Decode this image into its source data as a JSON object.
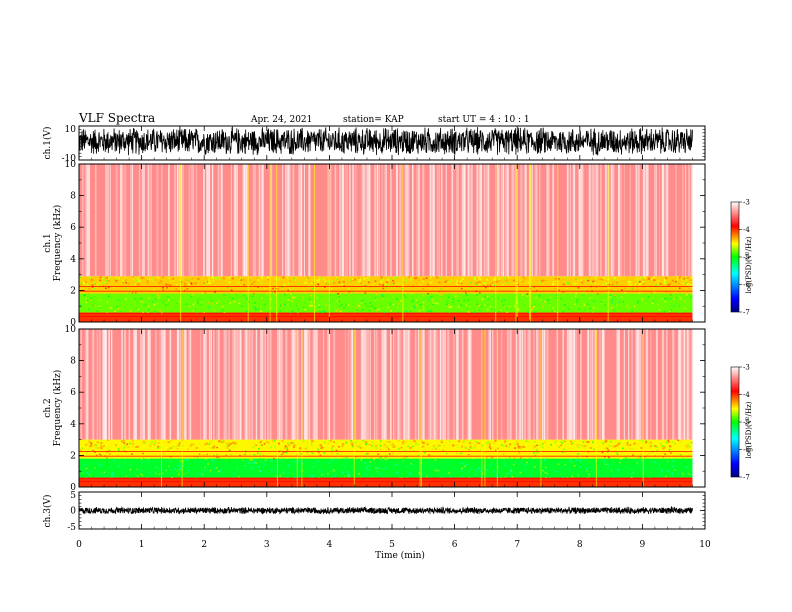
{
  "header": {
    "title": "VLF Spectra",
    "date": "Apr. 24, 2021",
    "station": "station= KAP",
    "start": "start  UT =   4 : 10 : 1"
  },
  "chart_data": [
    {
      "type": "line",
      "panel": "ch1-waveform",
      "ylabel": "ch.1(V)",
      "ylim": [
        -10,
        10
      ],
      "yticks": [
        "10",
        "-10"
      ],
      "xlim": [
        0,
        10
      ],
      "data_end_min": 9.8,
      "amplitude_range_V": [
        -8,
        10
      ]
    },
    {
      "type": "heatmap",
      "panel": "ch1-spectrogram",
      "ylabel_line1": "ch.1",
      "ylabel_line2": "Frequency (kHz)",
      "ylim": [
        0,
        10
      ],
      "yticks": [
        "0",
        "2",
        "4",
        "6",
        "8",
        "10"
      ],
      "xlim": [
        0,
        10
      ],
      "data_end_min": 9.8,
      "bands": [
        {
          "from_khz": 0,
          "to_khz": 0.6,
          "level": -4.0
        },
        {
          "from_khz": 0.6,
          "to_khz": 1.8,
          "level": -4.8
        },
        {
          "from_khz": 1.8,
          "to_khz": 2.9,
          "level": -4.4
        },
        {
          "from_khz": 2.9,
          "to_khz": 10,
          "level": -3.4
        }
      ],
      "colorbar": {
        "label": "log(PSD)(V²/Hz)",
        "range": [
          -7,
          -3
        ],
        "ticks": [
          "-3",
          "-4",
          "-5",
          "-6",
          "-7"
        ]
      }
    },
    {
      "type": "heatmap",
      "panel": "ch2-spectrogram",
      "ylabel_line1": "ch.2",
      "ylabel_line2": "Frequency (kHz)",
      "ylim": [
        0,
        10
      ],
      "yticks": [
        "0",
        "2",
        "4",
        "6",
        "8",
        "10"
      ],
      "xlim": [
        0,
        10
      ],
      "data_end_min": 9.8,
      "bands": [
        {
          "from_khz": 0,
          "to_khz": 0.6,
          "level": -4.0
        },
        {
          "from_khz": 0.6,
          "to_khz": 1.8,
          "level": -5.1
        },
        {
          "from_khz": 1.8,
          "to_khz": 3.0,
          "level": -4.5
        },
        {
          "from_khz": 3.0,
          "to_khz": 10,
          "level": -3.4
        }
      ],
      "colorbar": {
        "label": "log(PSD)(V²/Hz)",
        "range": [
          -7,
          -3
        ],
        "ticks": [
          "-3",
          "-4",
          "-5",
          "-6",
          "-7"
        ]
      }
    },
    {
      "type": "line",
      "panel": "ch3-waveform",
      "ylabel": "ch.3(V)",
      "ylim": [
        -5,
        5
      ],
      "yticks": [
        "5",
        "0",
        "-5"
      ],
      "xlim": [
        0,
        10
      ],
      "data_end_min": 9.8,
      "amplitude_range_V": [
        -1,
        1
      ]
    }
  ],
  "xaxis": {
    "label": "Time (min)",
    "ticks": [
      "0",
      "1",
      "2",
      "3",
      "4",
      "5",
      "6",
      "7",
      "8",
      "9",
      "10"
    ]
  },
  "colors": {
    "cmap": [
      "#00007f",
      "#0000ff",
      "#00ffff",
      "#00ff00",
      "#ffff00",
      "#ff0000",
      "#ffffff"
    ]
  }
}
